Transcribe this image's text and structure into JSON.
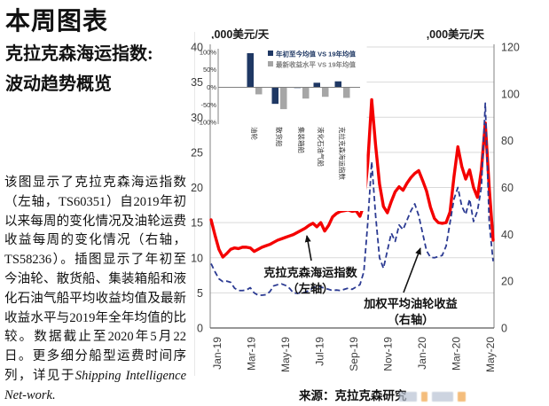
{
  "left_panel": {
    "title": "本周图表",
    "subtitle_line1": "克拉克森海运指数:",
    "subtitle_line2": "波动趋势概览",
    "paragraph_cn": "该图显示了克拉克森海运指数（左轴，TS60351）自2019年初以来每周的变化情况及油轮运费收益每周的变化情况（右轴，TS58236）。插图显示了年初至今油轮、散货船、集装箱船和液化石油气船平均收益均值及最新收益水平与2019年全年均值的比较。数据截止至2020年5月22日。更多细分船型运费时间序列，详见于",
    "paragraph_en_italic": "Shipping Intelligence Net-work."
  },
  "footer": {
    "source": "来源：克拉克森研究",
    "logo_colors": {
      "gray": "#b9c3d3",
      "orange": "#f0a245"
    }
  },
  "chart_data": {
    "type": "line",
    "left_axis": {
      "label": ",000美元/天",
      "min": 0,
      "max": 40,
      "step": 5
    },
    "right_axis": {
      "label": ",000美元/天",
      "min": 0,
      "max": 120,
      "step": 20
    },
    "x_ticks": [
      "Jan-19",
      "Mar-19",
      "May-19",
      "Jul-19",
      "Sep-19",
      "Nov-19",
      "Jan-20",
      "Mar-20",
      "May-20"
    ],
    "series": [
      {
        "name": "克拉克森海运指数（左轴）",
        "axis": "left",
        "line_style": "solid",
        "color": "#f40000",
        "values": [
          15.4,
          13.2,
          11.2,
          10.1,
          10.6,
          11.2,
          11.4,
          11.3,
          11.5,
          11.5,
          11.4,
          10.9,
          11.2,
          11.5,
          11.7,
          11.9,
          12.2,
          12.5,
          12.7,
          12.9,
          13.1,
          13.3,
          13.6,
          13.9,
          14.2,
          14.6,
          14.9,
          14.4,
          15.0,
          13.8,
          14.6,
          15.8,
          16.3,
          16.6,
          16.7,
          16.8,
          16.6,
          16.7,
          15.9,
          17.5,
          23.5,
          32.5,
          26.0,
          20.5,
          17.3,
          16.4,
          18.0,
          19.4,
          20.1,
          19.6,
          20.6,
          21.4,
          22.0,
          22.4,
          21.0,
          19.5,
          17.2,
          15.6,
          15.0,
          14.9,
          15.0,
          16.5,
          21.5,
          25.8,
          23.0,
          21.2,
          22.5,
          20.0,
          18.6,
          22.5,
          29.2,
          20.0,
          12.5
        ]
      },
      {
        "name": "加权平均油轮收益（右轴）",
        "axis": "right",
        "line_style": "dashed",
        "color": "#2b3a92",
        "values": [
          27.5,
          24.0,
          21.0,
          19.8,
          20.0,
          19.5,
          17.0,
          16.0,
          16.0,
          16.2,
          17.2,
          15.0,
          14.0,
          14.0,
          14.2,
          15.5,
          18.0,
          18.5,
          18.8,
          18.2,
          17.0,
          15.0,
          14.8,
          15.0,
          15.2,
          16.0,
          17.2,
          17.8,
          17.5,
          17.0,
          16.5,
          16.0,
          16.2,
          16.0,
          16.5,
          17.0,
          16.5,
          17.5,
          18.5,
          24.0,
          45.0,
          71.0,
          48.0,
          30.0,
          25.5,
          33.0,
          40.5,
          37.0,
          44.0,
          42.0,
          46.0,
          50.0,
          53.0,
          48.0,
          40.5,
          33.0,
          30.2,
          30.0,
          30.5,
          31.0,
          35.0,
          45.0,
          55.0,
          60.0,
          52.0,
          48.5,
          55.0,
          45.5,
          50.0,
          60.0,
          96.0,
          45.0,
          28.5
        ]
      }
    ],
    "annotations": [
      {
        "line1": "克拉克森海运指数",
        "line2": "（左轴）",
        "target_series": "克拉克森海运指数（左轴）"
      },
      {
        "line1": "加权平均油轮收益",
        "line2": "（右轴）",
        "target_series": "加权平均油轮收益（右轴）"
      }
    ],
    "inset": {
      "type": "bar",
      "y_ticks_percent": [
        100,
        50,
        0,
        -50,
        -100
      ],
      "categories": [
        "油轮",
        "散货船",
        "集装箱船",
        "液化石油气船",
        "克拉克森海运指数"
      ],
      "series": [
        {
          "name": "年初至今均值 VS 19年均值",
          "color": "#1f3864",
          "values_percent": [
            97,
            -47,
            -2,
            13,
            17
          ]
        },
        {
          "name": "最新收益水平 VS 19年均值",
          "color": "#a6a6a6",
          "values_percent": [
            -20,
            -62,
            -32,
            -27,
            -30
          ]
        }
      ]
    },
    "colors": {
      "gridline": "#d9d9d9",
      "axis": "#808080",
      "tick_text": "#3d3d3d"
    }
  }
}
